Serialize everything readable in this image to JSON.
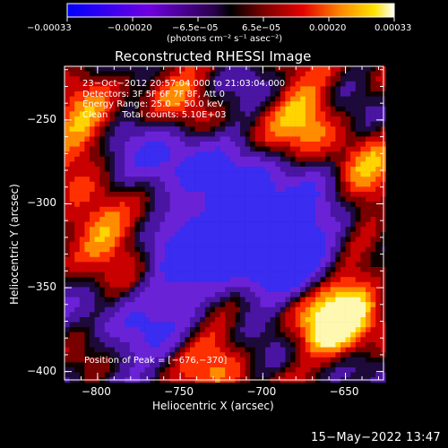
{
  "colorbar": {
    "ticks": [
      "−0.00033",
      "−0.00020",
      "−6.5e−05",
      "6.5e−05",
      "0.00020",
      "0.00033"
    ],
    "units": "(photons cm⁻² s⁻¹ asec⁻²)"
  },
  "title": "Reconstructed RHESSI Image",
  "info": {
    "line1": "23−Oct−2012 20:57:04.000 to 21:03:04.000",
    "line2": "Detectors: 3F 5F 6F 7F 8F, Att 0",
    "line3": "Energy Range: 25.0 − 50.0 keV",
    "line4": "Clean     Total counts: 5.10E+03"
  },
  "peak_text": "Position of Peak = [−676,−370]",
  "timestamp": "15−May−2022 13:47",
  "chart_data": {
    "type": "heatmap",
    "title": "Reconstructed RHESSI Image",
    "xlabel": "Heliocentric X (arcsec)",
    "ylabel": "Heliocentric Y (arcsec)",
    "x_ticks": [
      "−800",
      "−750",
      "−700",
      "−650"
    ],
    "y_ticks": [
      "−400",
      "−350",
      "−300",
      "−250"
    ],
    "xlim": [
      -820,
      -627
    ],
    "ylim": [
      -405,
      -218
    ],
    "x_tick_values": [
      -800,
      -750,
      -700,
      -650
    ],
    "y_tick_values": [
      -400,
      -350,
      -300,
      -250
    ],
    "colorbar_range": [
      -0.00033,
      0.00033
    ],
    "colormap": "red-temperature with blue/purple negatives",
    "peak_position": [
      -676,
      -370
    ]
  }
}
